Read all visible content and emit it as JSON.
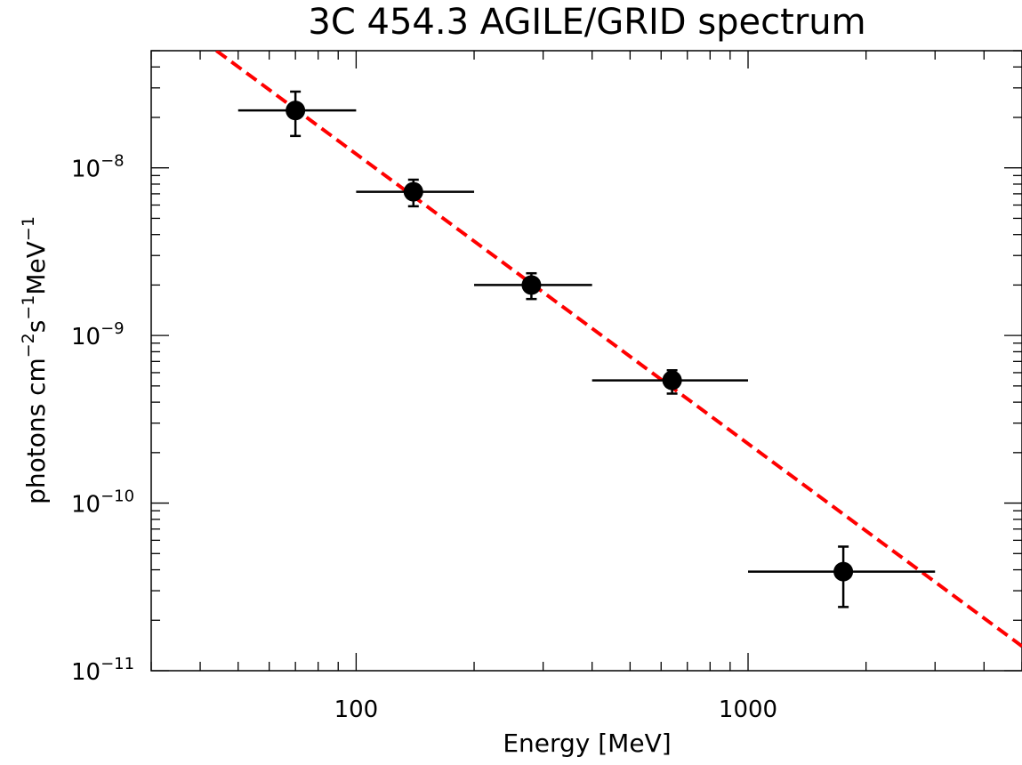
{
  "chart_data": {
    "type": "scatter",
    "title": "3C 454.3 AGILE/GRID spectrum",
    "xlabel": "Energy [MeV]",
    "ylabel": {
      "base": "photons cm",
      "exp1": "−2",
      "mid": "s",
      "exp2": "−1",
      "unit": "MeV",
      "exp3": "−1"
    },
    "x_scale": "log",
    "y_scale": "log",
    "xlim": [
      30,
      5000
    ],
    "ylim": [
      1e-11,
      5e-08
    ],
    "x_tick_labels": [
      {
        "value": 100,
        "label": "100"
      },
      {
        "value": 1000,
        "label": "1000"
      }
    ],
    "y_tick_labels": [
      {
        "value": 1e-08,
        "base": "10",
        "exp": "−8"
      },
      {
        "value": 1e-09,
        "base": "10",
        "exp": "−9"
      },
      {
        "value": 1e-10,
        "base": "10",
        "exp": "−10"
      },
      {
        "value": 1e-11,
        "base": "10",
        "exp": "−11"
      }
    ],
    "points": [
      {
        "x": 70,
        "y": 2.2e-08,
        "xmin": 50,
        "xmax": 100,
        "ymin": 1.55e-08,
        "ymax": 2.85e-08
      },
      {
        "x": 140,
        "y": 7.2e-09,
        "xmin": 100,
        "xmax": 200,
        "ymin": 5.9e-09,
        "ymax": 8.5e-09
      },
      {
        "x": 280,
        "y": 2e-09,
        "xmin": 200,
        "xmax": 400,
        "ymin": 1.65e-09,
        "ymax": 2.35e-09
      },
      {
        "x": 640,
        "y": 5.4e-10,
        "xmin": 400,
        "xmax": 1000,
        "ymin": 4.5e-10,
        "ymax": 6.2e-10
      },
      {
        "x": 1750,
        "y": 3.9e-11,
        "xmin": 1000,
        "xmax": 3000,
        "ymin": 2.4e-11,
        "ymax": 5.5e-11
      }
    ],
    "fit_line": {
      "style": "dashed",
      "color": "#ff0000",
      "x": [
        44,
        5000
      ],
      "y": [
        5e-08,
        1.4e-11
      ]
    },
    "marker_color": "#000000"
  }
}
